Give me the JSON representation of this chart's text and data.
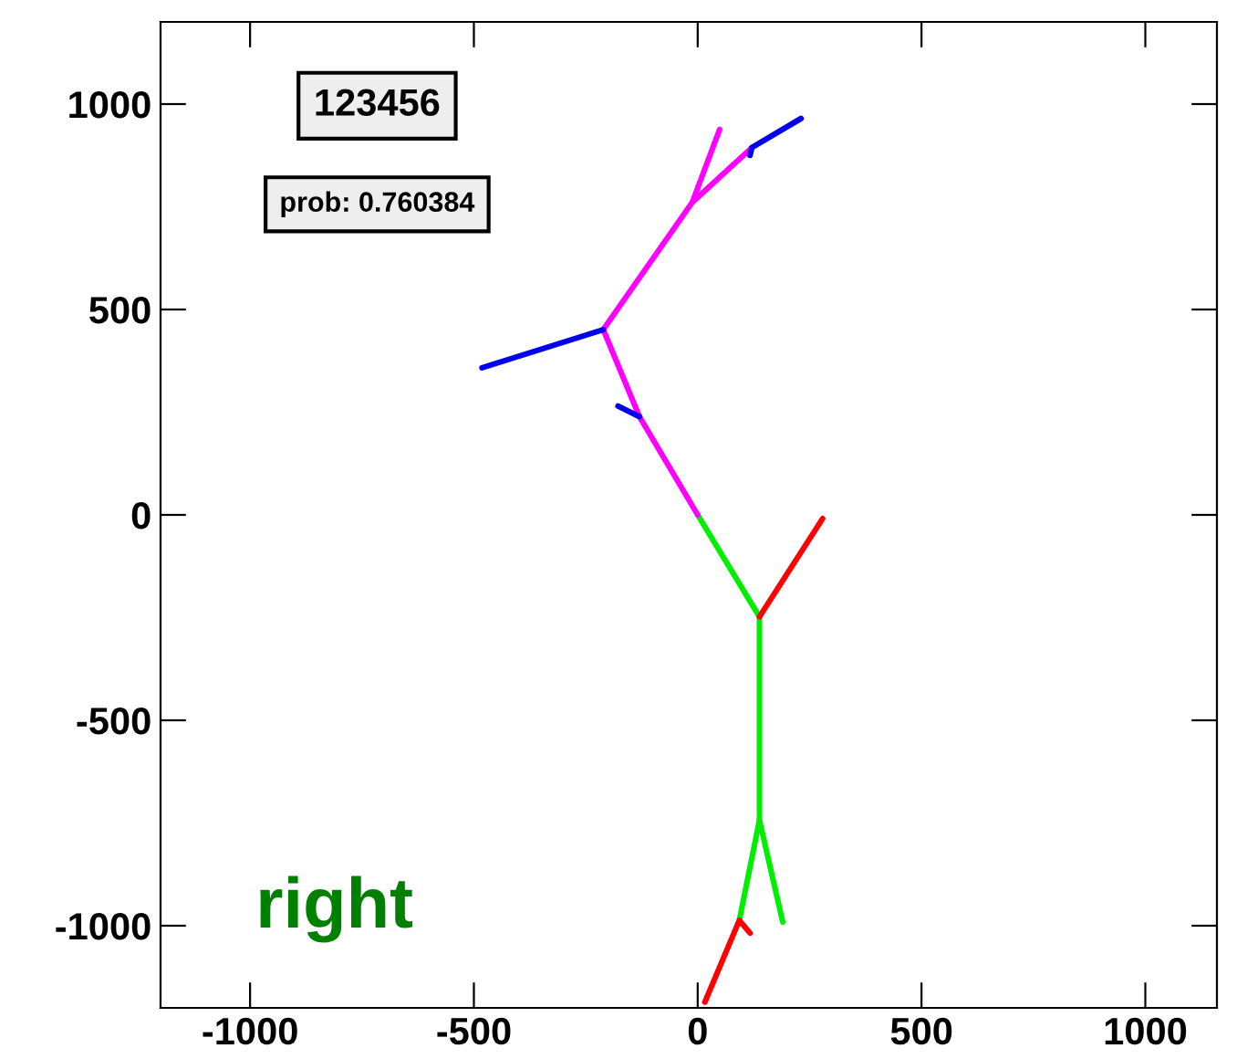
{
  "chart_data": {
    "type": "line",
    "series": [
      {
        "color": "#00ee00",
        "x": [
          0,
          138,
          138,
          93
        ],
        "values": [
          0,
          -248,
          -743,
          -987
        ]
      },
      {
        "color": "#00ee00",
        "x": [
          138,
          190
        ],
        "values": [
          -743,
          -991
        ]
      },
      {
        "color": "#ff0000",
        "x": [
          138,
          279
        ],
        "values": [
          -248,
          -9
        ]
      },
      {
        "color": "#ff0000",
        "x": [
          16,
          93,
          117
        ],
        "values": [
          -1186,
          -987,
          -1018
        ]
      },
      {
        "color": "#ff00ff",
        "x": [
          0,
          -130,
          -211,
          -12,
          49
        ],
        "values": [
          0,
          239,
          451,
          761,
          938
        ]
      },
      {
        "color": "#ff00ff",
        "x": [
          -12,
          121
        ],
        "values": [
          761,
          894
        ]
      },
      {
        "color": "#0000ee",
        "x": [
          -211,
          -482
        ],
        "values": [
          451,
          358
        ]
      },
      {
        "color": "#0000ee",
        "x": [
          -130,
          -178
        ],
        "values": [
          239,
          265
        ]
      },
      {
        "color": "#0000ee",
        "x": [
          117,
          121,
          231
        ],
        "values": [
          875,
          894,
          965
        ]
      }
    ],
    "xlim": [
      -1200,
      1160
    ],
    "ylim": [
      -1200,
      1200
    ],
    "xticks": [
      -1000,
      -500,
      0,
      500,
      1000
    ],
    "yticks": [
      -1000,
      -500,
      0,
      500,
      1000
    ],
    "line_style": "solid",
    "grid": false,
    "legend": false,
    "annotations": [
      "123456",
      "prob: 0.760384",
      "right"
    ]
  }
}
